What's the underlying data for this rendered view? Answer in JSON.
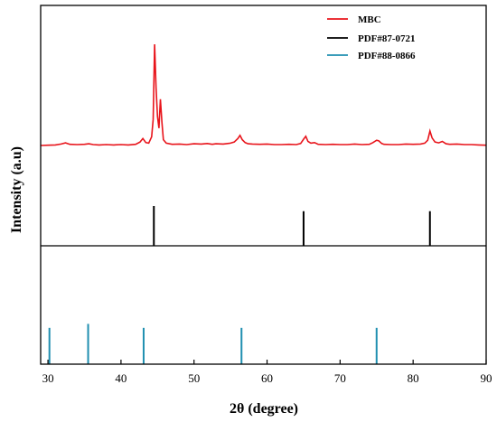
{
  "chart_data": {
    "type": "line",
    "xlabel": "2θ (degree)",
    "ylabel": "Intensity (a.u)",
    "xlim": [
      29,
      90
    ],
    "x_ticks": [
      30,
      40,
      50,
      60,
      70,
      80,
      90
    ],
    "grid": false,
    "legend_position": "top-right",
    "legend": [
      "MBC",
      "PDF#87-0721",
      "PDF#88-0866"
    ],
    "series": [
      {
        "name": "MBC",
        "kind": "line",
        "color": "#e8141b",
        "x": [
          29,
          30,
          31,
          31.8,
          32.4,
          33,
          34,
          35,
          35.6,
          36.2,
          37,
          38,
          39,
          40,
          41,
          42,
          42.6,
          43.0,
          43.4,
          43.8,
          44.2,
          44.4,
          44.6,
          44.8,
          45.0,
          45.2,
          45.4,
          45.6,
          45.8,
          46.2,
          47,
          48,
          49,
          50,
          51,
          51.8,
          52.5,
          53,
          54,
          55,
          55.5,
          56.0,
          56.3,
          56.6,
          57.0,
          57.4,
          58,
          59,
          60,
          61,
          62,
          63,
          64,
          64.6,
          65.0,
          65.3,
          65.6,
          66,
          66.5,
          67,
          68,
          69,
          70,
          71,
          72,
          73,
          74,
          74.5,
          75.0,
          75.3,
          75.7,
          76,
          77,
          78,
          79,
          80,
          81,
          81.6,
          82.0,
          82.3,
          82.6,
          83,
          83.5,
          84,
          84.5,
          85,
          86,
          87,
          88,
          89,
          90
        ],
        "y": [
          0,
          0.1,
          0.2,
          0.5,
          0.9,
          0.4,
          0.3,
          0.4,
          0.6,
          0.3,
          0.2,
          0.3,
          0.2,
          0.3,
          0.2,
          0.4,
          1.2,
          2.4,
          1.0,
          0.8,
          3.0,
          9.0,
          35.0,
          20.0,
          10.0,
          6.0,
          16.0,
          8.0,
          2.0,
          0.8,
          0.4,
          0.5,
          0.3,
          0.6,
          0.5,
          0.7,
          0.4,
          0.6,
          0.5,
          0.8,
          1.2,
          2.4,
          3.5,
          2.0,
          1.0,
          0.6,
          0.5,
          0.4,
          0.5,
          0.3,
          0.3,
          0.4,
          0.3,
          0.7,
          2.2,
          3.2,
          1.4,
          0.8,
          1.0,
          0.4,
          0.3,
          0.4,
          0.3,
          0.3,
          0.5,
          0.3,
          0.4,
          1.0,
          1.8,
          1.6,
          0.7,
          0.4,
          0.3,
          0.3,
          0.5,
          0.4,
          0.5,
          0.8,
          1.8,
          5.0,
          2.6,
          1.2,
          0.9,
          1.4,
          0.6,
          0.4,
          0.5,
          0.3,
          0.3,
          0.2,
          0.1
        ]
      },
      {
        "name": "PDF#87-0721",
        "kind": "sticks",
        "color": "#000000",
        "x": [
          44.5,
          65.0,
          82.3
        ],
        "y": [
          1.0,
          0.87,
          0.87
        ]
      },
      {
        "name": "PDF#88-0866",
        "kind": "sticks",
        "color": "#1f8fb0",
        "x": [
          30.2,
          35.5,
          43.1,
          56.5,
          75.0
        ],
        "y": [
          0.82,
          0.91,
          0.82,
          0.82,
          0.82
        ]
      }
    ]
  }
}
